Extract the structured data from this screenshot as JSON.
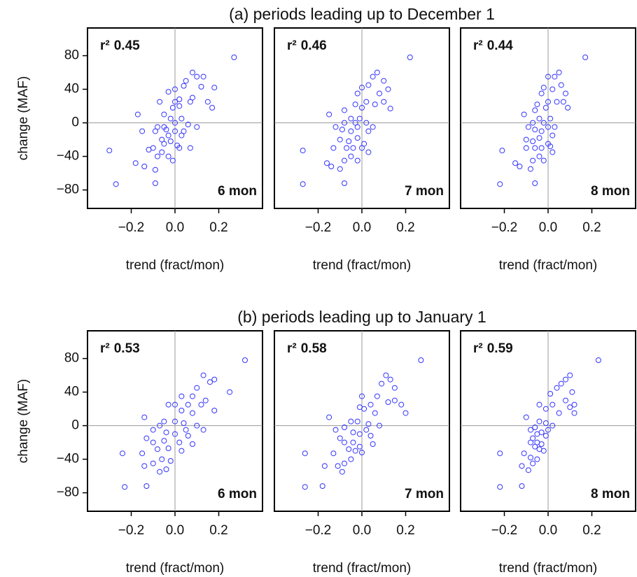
{
  "chart_data": [
    {
      "type": "scatter",
      "title": "(a) periods leading up to December 1",
      "ylabel": "change (MAF)",
      "xlabel": "trend (fract/mon)",
      "stat_label": "r²",
      "r_squared": 0.45,
      "annotation": "6 mon",
      "color": "#3333ff",
      "x": [
        0.27,
        0.08,
        0.1,
        0.13,
        0.05,
        0.18,
        0.12,
        0.0,
        0.04,
        0.08,
        0.15,
        0.17,
        0.07,
        0.02,
        -0.03,
        -0.07,
        0.0,
        0.02,
        -0.01,
        -0.17,
        -0.05,
        -0.02,
        0.0,
        0.03,
        0.06,
        -0.08,
        -0.04,
        0.0,
        -0.15,
        -0.09,
        -0.06,
        -0.03,
        0.03,
        -0.05,
        0.01,
        -0.02,
        -0.12,
        -0.1,
        -0.3,
        -0.06,
        0.07,
        -0.03,
        -0.01,
        -0.08,
        -0.18,
        -0.14,
        -0.09,
        -0.27,
        -0.09,
        0.02,
        -0.05,
        0.04,
        0.1
      ],
      "values": [
        78,
        60,
        55,
        55,
        50,
        42,
        43,
        40,
        44,
        30,
        25,
        18,
        25,
        28,
        37,
        25,
        25,
        20,
        18,
        10,
        10,
        5,
        0,
        5,
        -2,
        -5,
        -8,
        -10,
        -10,
        -10,
        -20,
        -15,
        -15,
        -25,
        -27,
        -22,
        -32,
        -30,
        -33,
        -35,
        -30,
        -40,
        -45,
        -40,
        -48,
        -52,
        -56,
        -73,
        -72,
        -30,
        -5,
        -10,
        -5
      ],
      "xlim": [
        -0.4,
        0.4
      ],
      "ylim": [
        -102,
        113
      ],
      "xticks": [
        {
          "value": -0.2,
          "label": "−0.2"
        },
        {
          "value": 0,
          "label": "0.0"
        },
        0.2
      ],
      "yticks": [
        {
          "value": -80,
          "label": "−80"
        },
        {
          "value": -40,
          "label": "−40"
        },
        0,
        40,
        80
      ]
    },
    {
      "type": "scatter",
      "xlabel": "trend (fract/mon)",
      "stat_label": "r²",
      "r_squared": 0.46,
      "annotation": "7 mon",
      "color": "#3333ff",
      "x": [
        0.22,
        0.07,
        0.05,
        0.1,
        0.03,
        0.12,
        0.08,
        0.0,
        -0.02,
        0.1,
        0.13,
        0.06,
        0.02,
        0.0,
        -0.03,
        -0.15,
        -0.08,
        -0.05,
        -0.01,
        0.02,
        -0.08,
        -0.12,
        -0.09,
        -0.05,
        -0.02,
        0.03,
        -0.1,
        -0.06,
        -0.02,
        0.01,
        -0.07,
        -0.04,
        0.03,
        -0.13,
        -0.27,
        -0.05,
        -0.02,
        -0.08,
        -0.16,
        -0.14,
        -0.1,
        -0.27,
        -0.08,
        0.0,
        0.05,
        -0.03
      ],
      "values": [
        78,
        60,
        55,
        50,
        45,
        40,
        35,
        42,
        35,
        25,
        17,
        22,
        25,
        18,
        22,
        10,
        15,
        5,
        5,
        0,
        0,
        -5,
        -8,
        -10,
        -5,
        -10,
        -20,
        -22,
        -18,
        -25,
        -30,
        -30,
        -35,
        -30,
        -33,
        -40,
        -45,
        -45,
        -48,
        -52,
        -55,
        -73,
        -72,
        -30,
        -5,
        0
      ],
      "xlim": [
        -0.4,
        0.4
      ],
      "ylim": [
        -102,
        113
      ],
      "xticks": [
        {
          "value": -0.2,
          "label": "−0.2"
        },
        {
          "value": 0,
          "label": "0.0"
        },
        0.2
      ]
    },
    {
      "type": "scatter",
      "xlabel": "trend (fract/mon)",
      "stat_label": "r²",
      "r_squared": 0.44,
      "annotation": "8 mon",
      "color": "#3333ff",
      "x": [
        0.17,
        0.05,
        0.03,
        0.0,
        0.06,
        0.08,
        0.02,
        -0.02,
        -0.03,
        0.07,
        0.09,
        0.04,
        0.0,
        -0.01,
        -0.05,
        -0.11,
        -0.06,
        -0.04,
        -0.02,
        0.01,
        -0.07,
        -0.09,
        -0.06,
        -0.03,
        0.0,
        0.02,
        -0.1,
        -0.07,
        -0.04,
        0.0,
        -0.06,
        -0.03,
        0.02,
        -0.1,
        -0.21,
        -0.04,
        -0.02,
        -0.07,
        -0.15,
        -0.13,
        -0.08,
        -0.22,
        -0.06,
        0.01,
        0.03
      ],
      "values": [
        78,
        60,
        55,
        55,
        45,
        35,
        40,
        42,
        35,
        25,
        18,
        25,
        25,
        18,
        22,
        10,
        15,
        5,
        0,
        5,
        0,
        -5,
        -8,
        -10,
        -5,
        -15,
        -20,
        -22,
        -18,
        -25,
        -30,
        -30,
        -35,
        -30,
        -33,
        -40,
        -45,
        -45,
        -48,
        -52,
        -55,
        -73,
        -72,
        -28,
        -5
      ],
      "xlim": [
        -0.4,
        0.4
      ],
      "ylim": [
        -102,
        113
      ],
      "xticks": [
        {
          "value": -0.2,
          "label": "−0.2"
        },
        {
          "value": 0,
          "label": "0.0"
        },
        0.2
      ]
    },
    {
      "type": "scatter",
      "title": "(b) periods leading up to January 1",
      "ylabel": "change (MAF)",
      "xlabel": "trend (fract/mon)",
      "stat_label": "r²",
      "r_squared": 0.53,
      "annotation": "6 mon",
      "color": "#3333ff",
      "x": [
        0.32,
        0.13,
        0.18,
        0.16,
        0.1,
        0.25,
        0.08,
        0.03,
        0.12,
        0.14,
        0.18,
        0.06,
        0.0,
        -0.03,
        0.03,
        0.08,
        -0.14,
        -0.05,
        0.0,
        0.04,
        0.1,
        0.13,
        -0.07,
        -0.1,
        -0.04,
        0.0,
        0.06,
        -0.13,
        -0.1,
        -0.05,
        0.02,
        0.08,
        -0.08,
        -0.03,
        0.03,
        -0.15,
        -0.24,
        -0.06,
        -0.02,
        -0.1,
        -0.14,
        -0.07,
        -0.04,
        -0.23,
        -0.13,
        0.05
      ],
      "values": [
        78,
        60,
        55,
        52,
        45,
        40,
        35,
        35,
        25,
        30,
        18,
        25,
        25,
        25,
        18,
        15,
        10,
        5,
        5,
        3,
        0,
        -5,
        0,
        -5,
        -8,
        -10,
        -12,
        -15,
        -20,
        -18,
        -20,
        -22,
        -28,
        -27,
        -30,
        -33,
        -33,
        -40,
        -42,
        -45,
        -48,
        -55,
        -52,
        -73,
        -72,
        -5
      ],
      "xlim": [
        -0.4,
        0.4
      ],
      "ylim": [
        -102,
        113
      ],
      "xticks": [
        {
          "value": -0.2,
          "label": "−0.2"
        },
        {
          "value": 0,
          "label": "0.0"
        },
        0.2
      ],
      "yticks": [
        {
          "value": -80,
          "label": "−80"
        },
        {
          "value": -40,
          "label": "−40"
        },
        0,
        40,
        80
      ]
    },
    {
      "type": "scatter",
      "xlabel": "trend (fract/mon)",
      "stat_label": "r²",
      "r_squared": 0.58,
      "annotation": "7 mon",
      "color": "#3333ff",
      "x": [
        0.27,
        0.11,
        0.13,
        0.09,
        0.15,
        0.07,
        0.0,
        0.12,
        0.18,
        0.15,
        0.04,
        0.01,
        -0.01,
        0.06,
        0.2,
        -0.15,
        -0.05,
        -0.02,
        0.03,
        0.08,
        -0.08,
        -0.12,
        -0.04,
        -0.01,
        0.04,
        -0.1,
        -0.08,
        -0.04,
        -0.01,
        0.05,
        -0.06,
        -0.03,
        0.0,
        -0.13,
        -0.26,
        -0.05,
        -0.08,
        -0.11,
        -0.09,
        -0.17,
        -0.26,
        -0.18,
        0.02
      ],
      "values": [
        78,
        60,
        55,
        50,
        45,
        35,
        35,
        28,
        25,
        30,
        25,
        20,
        22,
        15,
        15,
        10,
        5,
        5,
        2,
        0,
        -2,
        -5,
        -8,
        -10,
        -12,
        -15,
        -20,
        -20,
        -25,
        -22,
        -28,
        -30,
        -32,
        -33,
        -33,
        -40,
        -45,
        -48,
        -55,
        -48,
        -73,
        -72,
        -5
      ],
      "xlim": [
        -0.4,
        0.4
      ],
      "ylim": [
        -102,
        113
      ],
      "xticks": [
        {
          "value": -0.2,
          "label": "−0.2"
        },
        {
          "value": 0,
          "label": "0.0"
        },
        0.2
      ]
    },
    {
      "type": "scatter",
      "xlabel": "trend (fract/mon)",
      "stat_label": "r²",
      "r_squared": 0.59,
      "annotation": "8 mon",
      "color": "#3333ff",
      "x": [
        0.23,
        0.1,
        0.08,
        0.06,
        0.11,
        0.04,
        0.01,
        0.08,
        0.12,
        0.1,
        0.02,
        -0.01,
        -0.04,
        0.05,
        0.12,
        -0.1,
        -0.04,
        -0.01,
        0.02,
        -0.06,
        -0.08,
        -0.03,
        -0.01,
        -0.07,
        -0.05,
        -0.08,
        -0.03,
        -0.06,
        -0.04,
        -0.02,
        -0.11,
        -0.22,
        -0.08,
        -0.05,
        -0.07,
        -0.12,
        -0.09,
        -0.22,
        -0.12,
        0.0,
        -0.05
      ],
      "values": [
        78,
        60,
        55,
        50,
        40,
        45,
        38,
        30,
        25,
        22,
        25,
        20,
        25,
        15,
        15,
        10,
        5,
        3,
        0,
        -2,
        -5,
        -8,
        -12,
        -15,
        -20,
        -20,
        -22,
        -25,
        -28,
        -30,
        -33,
        -33,
        -38,
        -40,
        -45,
        -48,
        -53,
        -73,
        -72,
        -5,
        -10
      ],
      "xlim": [
        -0.4,
        0.4
      ],
      "ylim": [
        -102,
        113
      ],
      "xticks": [
        {
          "value": -0.2,
          "label": "−0.2"
        },
        {
          "value": 0,
          "label": "0.0"
        },
        0.2
      ]
    }
  ]
}
